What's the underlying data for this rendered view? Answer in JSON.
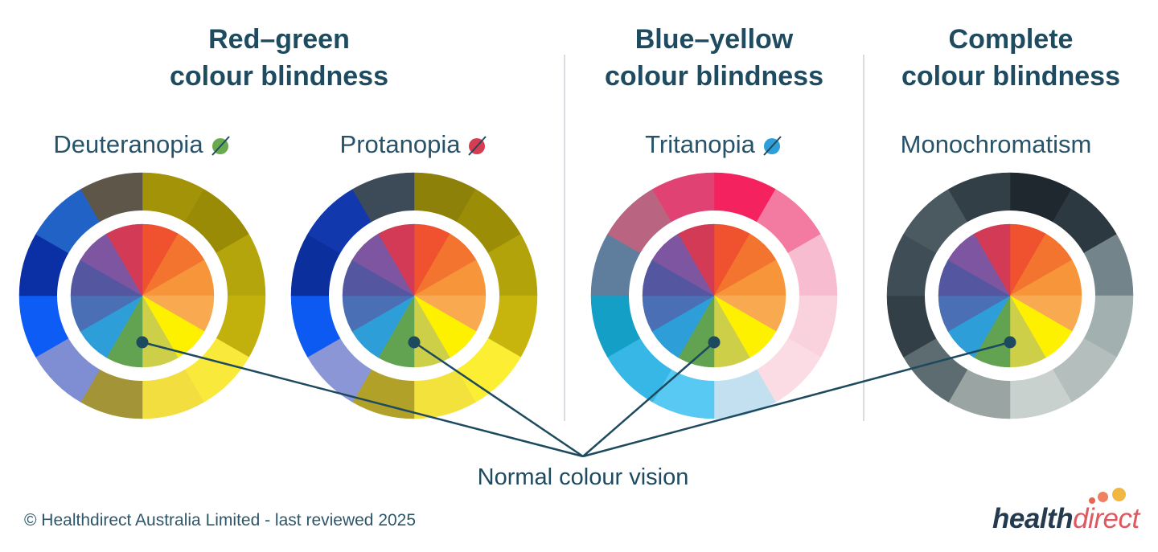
{
  "sections": [
    {
      "line1": "Red–green",
      "line2": "colour blindness"
    },
    {
      "line1": "Blue–yellow",
      "line2": "colour blindness"
    },
    {
      "line1": "Complete",
      "line2": "colour blindness"
    }
  ],
  "wheels": [
    {
      "label": "Deuteranopia",
      "icon": "green-dot-slash-icon",
      "icon_color": "#6aaa4e",
      "outer_ring": [
        "#a39309",
        "#9a8b06",
        "#b3a50b",
        "#c2b00d",
        "#f9e93a",
        "#f2de3f",
        "#a39537",
        "#7f8dd2",
        "#0c5cf5",
        "#0b2fa4",
        "#2162c7",
        "#5e5749"
      ]
    },
    {
      "label": "Protanopia",
      "icon": "red-dot-slash-icon",
      "icon_color": "#d63d52",
      "outer_ring": [
        "#8e8109",
        "#9c8d07",
        "#b2a30a",
        "#c7b50e",
        "#fbee33",
        "#f4e23c",
        "#b2a128",
        "#8b96d6",
        "#0d5af3",
        "#0c2f9e",
        "#1238ad",
        "#3d4a57"
      ]
    },
    {
      "label": "Tritanopia",
      "icon": "blue-dot-slash-icon",
      "icon_color": "#2e9fd9",
      "outer_ring": [
        "#f4225e",
        "#f37aa0",
        "#f8bcd0",
        "#fad2de",
        "#fbdce4",
        "#c3e0f0",
        "#58c9f2",
        "#36b7e6",
        "#149fc6",
        "#5f7e9d",
        "#b96480",
        "#e04373"
      ]
    },
    {
      "label": "Monochromatism",
      "icon": null,
      "icon_color": null,
      "outer_ring": [
        "#1f282e",
        "#2d3940",
        "#73848a",
        "#a2b0b0",
        "#b4bfbd",
        "#c9d1cf",
        "#9aa5a3",
        "#5d6c70",
        "#333f47",
        "#3f4e56",
        "#4b5960",
        "#333f46"
      ]
    }
  ],
  "normal_vision_wheel": [
    "#f0512f",
    "#f3742f",
    "#f7953b",
    "#f9a950",
    "#fdf100",
    "#cdcf49",
    "#61a351",
    "#2e9ed9",
    "#4a6fb4",
    "#5457a0",
    "#7d55a1",
    "#d23a55"
  ],
  "annotation": {
    "label": "Normal colour vision"
  },
  "footer": {
    "copyright": "© Healthdirect Australia Limited - last reviewed 2025"
  },
  "logo": {
    "word1": "health",
    "word2": "direct",
    "word1_color": "#243b4f",
    "word2_color": "#dd5960",
    "dot_colors": [
      "#e8654f",
      "#ef8060",
      "#f2b742"
    ]
  },
  "theme": {
    "heading_color": "#1e4b5f",
    "label_color": "#27536a",
    "annotation_color": "#1e4b5f",
    "footer_color": "#2e566b",
    "line_color": "#1d4a5f",
    "slash_color": "#1d4a5f",
    "divider_color": "#d9dde1",
    "background": "#ffffff"
  }
}
